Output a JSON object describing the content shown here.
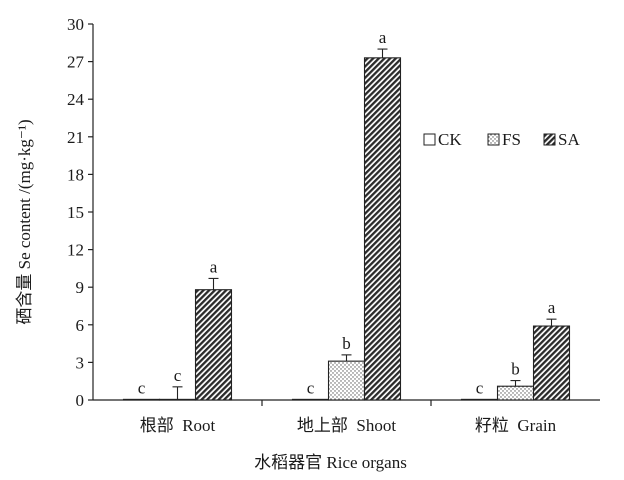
{
  "chart_data": {
    "type": "bar",
    "xlabel": "水稻器官 Rice organs",
    "ylabel": "硒含量 Se content /(mg·kg⁻¹)",
    "ylim": [
      0,
      30
    ],
    "yticks": [
      0,
      3,
      6,
      9,
      12,
      15,
      18,
      21,
      24,
      27,
      30
    ],
    "categories": [
      "根部  Root",
      "地上部  Shoot",
      "籽粒  Grain"
    ],
    "series": [
      {
        "name": "CK",
        "pattern": "solid-white",
        "values": [
          0.05,
          0.05,
          0.05
        ],
        "errors": [
          0,
          0,
          0
        ],
        "letters": [
          "c",
          "c",
          "c"
        ]
      },
      {
        "name": "FS",
        "pattern": "dotted",
        "values": [
          0.05,
          3.1,
          1.1
        ],
        "errors": [
          1.0,
          0.5,
          0.45
        ],
        "letters": [
          "c",
          "b",
          "b"
        ]
      },
      {
        "name": "SA",
        "pattern": "diagonal-hatch",
        "values": [
          8.8,
          27.3,
          5.9
        ],
        "errors": [
          0.9,
          0.7,
          0.55
        ],
        "letters": [
          "a",
          "a",
          "a"
        ]
      }
    ],
    "legend_position": "right",
    "grid": false
  }
}
